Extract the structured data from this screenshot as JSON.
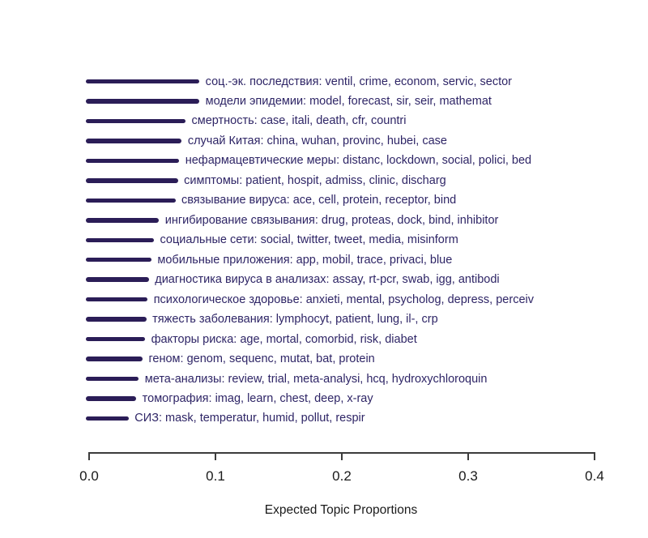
{
  "chart_data": {
    "type": "bar",
    "orientation": "horizontal",
    "title": "",
    "xlabel": "Expected Topic Proportions",
    "ylabel": "",
    "xlim": [
      0.0,
      0.4
    ],
    "x_ticks": [
      "0.0",
      "0.1",
      "0.2",
      "0.3",
      "0.4"
    ],
    "x_tick_values": [
      0.0,
      0.1,
      0.2,
      0.3,
      0.4
    ],
    "grid": false,
    "legend": "none",
    "categories": [
      "соц.-эк. последствия: ventil, crime, econom, servic, sector",
      "модели эпидемии: model, forecast, sir, seir, mathemat",
      "смертность: case, itali, death, cfr, countri",
      "случай Китая: china, wuhan, provinc, hubei, case",
      "нефармацевтические меры: distanc, lockdown, social, polici, bed",
      "симптомы: patient, hospit, admiss, clinic, discharg",
      "связывание вируса: ace, cell, protein, receptor, bind",
      "ингибирование связывания: drug, proteas, dock, bind, inhibitor",
      "социальные сети: social, twitter, tweet, media, misinform",
      "мобильные приложения: app, mobil, trace, privaci, blue",
      "диагностика вируса в анализах: assay, rt-pcr, swab, igg, antibodi",
      "психологическое здоровье: anxieti, mental, psycholog, depress, perceiv",
      "тяжесть заболевания: lymphocyt, patient, lung, il-, crp",
      "факторы риска: age, mortal, comorbid, risk, diabet",
      "геном: genom, sequenc, mutat, bat, protein",
      "мета-анализы: review, trial, meta-analysi, hcq, hydroxychloroquin",
      "томография: imag, learn, chest, deep, x-ray",
      "СИЗ: mask, temperatur, humid, pollut, respir"
    ],
    "values": [
      0.086,
      0.086,
      0.075,
      0.072,
      0.07,
      0.069,
      0.067,
      0.054,
      0.05,
      0.048,
      0.046,
      0.045,
      0.044,
      0.043,
      0.041,
      0.038,
      0.036,
      0.03
    ],
    "colors": {
      "segment": "#2b1d57",
      "label": "#2e2566",
      "axis": "#3c3c3c",
      "axis_text": "#1a1a1a",
      "background": "#ffffff"
    }
  },
  "layout_note": "STM expected topic proportions plot"
}
